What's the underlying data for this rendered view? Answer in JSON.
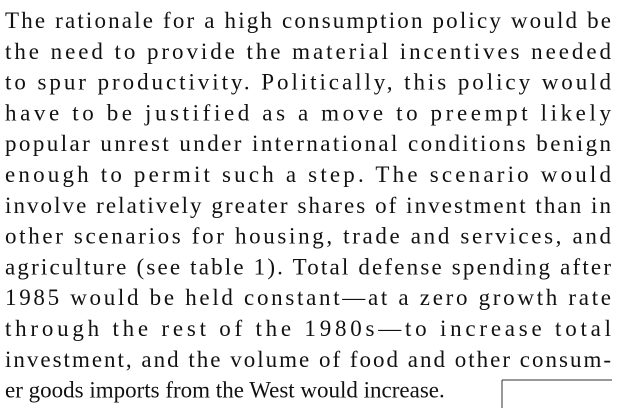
{
  "paragraph": {
    "lines": [
      "The rationale for a high consumption policy would be",
      "the need to provide the material incentives needed",
      "to spur productivity. Politically, this policy would",
      "have to be justified as a move to preempt likely",
      "popular unrest under international conditions benign",
      "enough to permit such a step. The scenario would",
      "involve relatively greater shares of investment than in",
      "other scenarios for housing, trade and services, and",
      "agriculture (see table 1). Total defense spending after",
      "1985 would be held constant—at a zero growth rate",
      "through the rest of the 1980s—to increase total",
      "investment, and the volume of food and other consum-",
      "er goods imports from the West would increase."
    ]
  }
}
